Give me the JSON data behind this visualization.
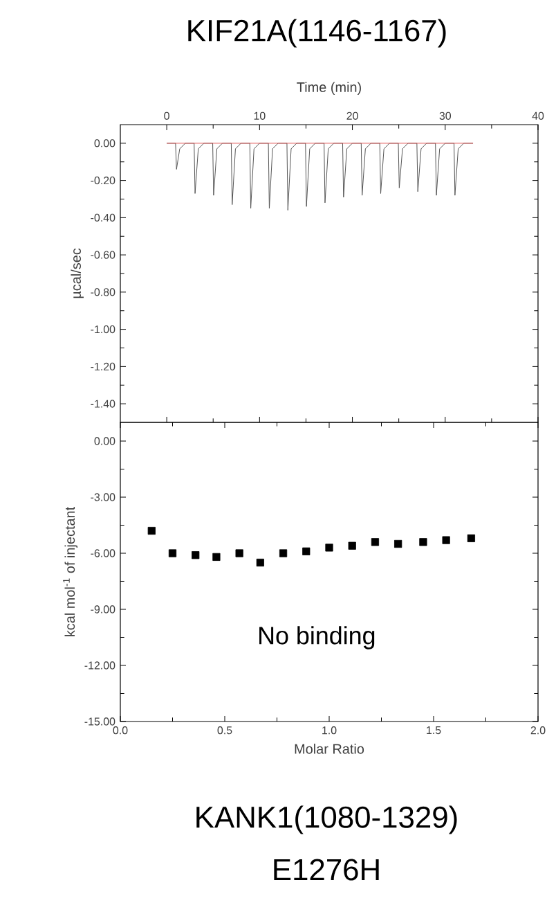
{
  "chart_data": [
    {
      "type": "line",
      "title": "KIF21A(1146-1167)",
      "xlabel": "Time (min)",
      "ylabel": "µcal/sec",
      "xlim": [
        -5,
        40
      ],
      "xticks": [
        0,
        10,
        20,
        30,
        40
      ],
      "ylim": [
        -1.5,
        0.1
      ],
      "yticks": [
        {
          "value": 0,
          "label": "0.00"
        },
        {
          "value": -0.2,
          "label": "-0.20"
        },
        {
          "value": -0.4,
          "label": "-0.40"
        },
        {
          "value": -0.6,
          "label": "-0.60"
        },
        {
          "value": -0.8,
          "label": "-0.80"
        },
        {
          "value": -1.0,
          "label": "-1.00"
        },
        {
          "value": -1.2,
          "label": "-1.20"
        },
        {
          "value": -1.4,
          "label": "-1.40"
        }
      ],
      "series": [
        {
          "color": "#555555",
          "x": [
            0,
            0.95,
            1.05,
            1.4,
            2,
            2.95,
            3.05,
            3.4,
            4,
            4.95,
            5.05,
            5.4,
            6,
            6.95,
            7.05,
            7.4,
            8,
            8.95,
            9.05,
            9.4,
            10,
            10.95,
            11.05,
            11.4,
            12,
            12.95,
            13.05,
            13.4,
            14,
            14.95,
            15.05,
            15.4,
            16,
            16.95,
            17.05,
            17.4,
            18,
            18.95,
            19.05,
            19.4,
            20,
            20.95,
            21.05,
            21.4,
            22,
            22.95,
            23.05,
            23.4,
            24,
            24.95,
            25.05,
            25.4,
            26,
            26.95,
            27.05,
            27.4,
            28,
            28.95,
            29.05,
            29.4,
            30,
            30.95,
            31.05,
            31.4,
            32,
            33
          ],
          "values": [
            0,
            0,
            -0.14,
            -0.03,
            0,
            0,
            -0.27,
            -0.03,
            0,
            0,
            -0.28,
            -0.03,
            0,
            0,
            -0.33,
            -0.03,
            0,
            0,
            -0.35,
            -0.03,
            0,
            0,
            -0.35,
            -0.03,
            0,
            0,
            -0.36,
            -0.03,
            0,
            0,
            -0.34,
            -0.03,
            0,
            0,
            -0.32,
            -0.03,
            0,
            0,
            -0.29,
            -0.03,
            0,
            0,
            -0.28,
            -0.03,
            0,
            0,
            -0.27,
            -0.03,
            0,
            0,
            -0.24,
            -0.03,
            0,
            0,
            -0.26,
            -0.03,
            0,
            0,
            -0.28,
            -0.03,
            0,
            0,
            -0.28,
            -0.03,
            0,
            0
          ]
        },
        {
          "color": "#e05555",
          "x": [
            0,
            33
          ],
          "values": [
            0,
            0
          ]
        }
      ]
    },
    {
      "type": "scatter",
      "xlabel": "Molar Ratio",
      "ylabel": "kcal mol$^{-1}$ of injectant",
      "marker": "square",
      "xlim": [
        0,
        2
      ],
      "xticks": [
        {
          "value": 0,
          "label": "0.0"
        },
        {
          "value": 0.5,
          "label": "0.5"
        },
        {
          "value": 1.0,
          "label": "1.0"
        },
        {
          "value": 1.5,
          "label": "1.5"
        },
        {
          "value": 2.0,
          "label": "2.0"
        }
      ],
      "ylim": [
        -15,
        1
      ],
      "yticks": [
        {
          "value": 0,
          "label": "0.00"
        },
        {
          "value": -3,
          "label": "-3.00"
        },
        {
          "value": -6,
          "label": "-6.00"
        },
        {
          "value": -9,
          "label": "-9.00"
        },
        {
          "value": -12,
          "label": "-12.00"
        },
        {
          "value": -15,
          "label": "-15.00"
        }
      ],
      "series": [
        {
          "color": "#000000",
          "x": [
            0.15,
            0.25,
            0.36,
            0.46,
            0.57,
            0.67,
            0.78,
            0.89,
            1.0,
            1.11,
            1.22,
            1.33,
            1.45,
            1.56,
            1.68
          ],
          "values": [
            -4.8,
            -6.0,
            -6.1,
            -6.2,
            -6.0,
            -6.5,
            -6.0,
            -5.9,
            -5.7,
            -5.6,
            -5.4,
            -5.5,
            -5.4,
            -5.3,
            -5.2
          ]
        }
      ],
      "annotations": [
        "No binding",
        "KANK1(1080-1329)",
        "E1276H"
      ]
    }
  ]
}
